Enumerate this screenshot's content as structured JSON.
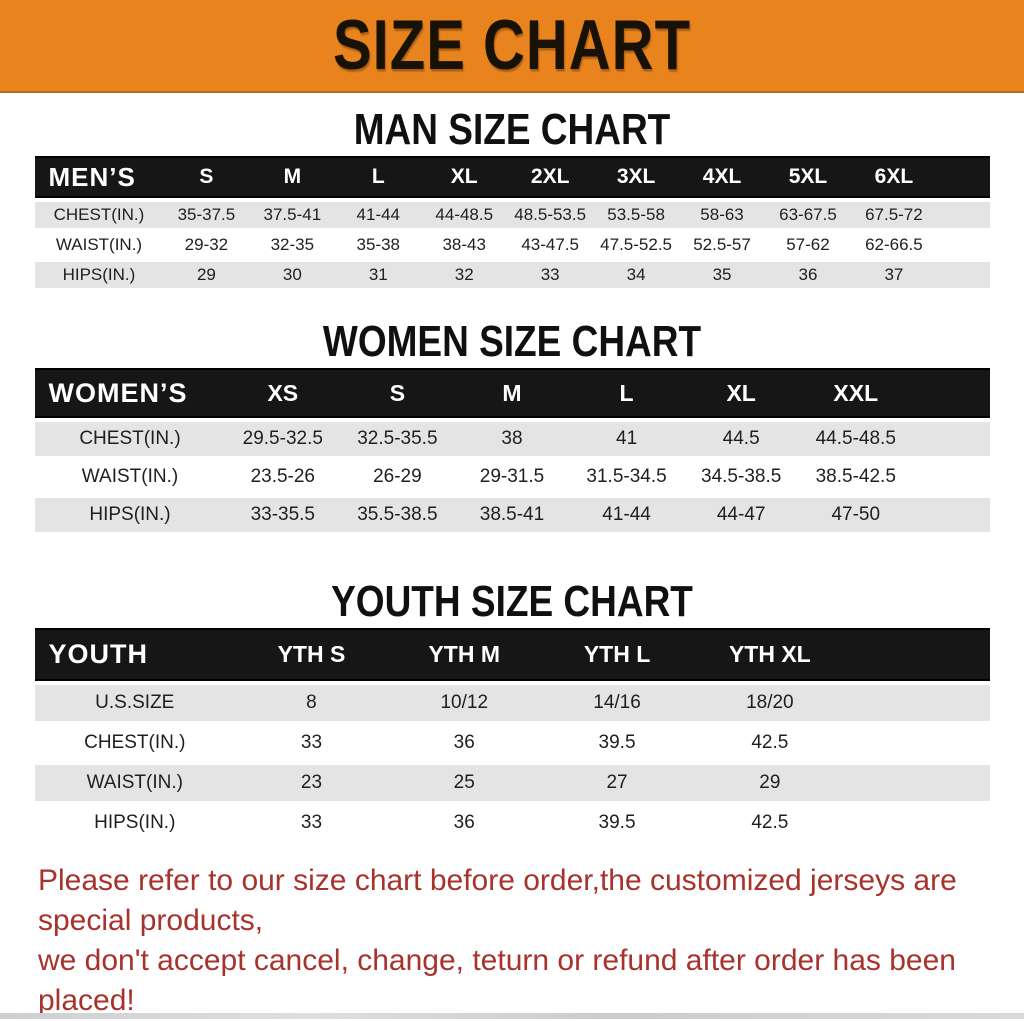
{
  "banner": {
    "title": "SIZE CHART"
  },
  "charts": [
    {
      "heading": "MAN SIZE CHART",
      "corner_label": "MEN’S",
      "size_columns": [
        "S",
        "M",
        "L",
        "XL",
        "2XL",
        "3XL",
        "4XL",
        "5XL",
        "6XL"
      ],
      "rows": [
        {
          "label": "CHEST(IN.)",
          "values": [
            "35-37.5",
            "37.5-41",
            "41-44",
            "44-48.5",
            "48.5-53.5",
            "53.5-58",
            "58-63",
            "63-67.5",
            "67.5-72"
          ]
        },
        {
          "label": "WAIST(IN.)",
          "values": [
            "29-32",
            "32-35",
            "35-38",
            "38-43",
            "43-47.5",
            "47.5-52.5",
            "52.5-57",
            "57-62",
            "62-66.5"
          ]
        },
        {
          "label": "HIPS(IN.)",
          "values": [
            "29",
            "30",
            "31",
            "32",
            "33",
            "34",
            "35",
            "36",
            "37"
          ]
        }
      ]
    },
    {
      "heading": "WOMEN SIZE CHART",
      "corner_label": "WOMEN’S",
      "size_columns": [
        "XS",
        "S",
        "M",
        "L",
        "XL",
        "XXL"
      ],
      "rows": [
        {
          "label": "CHEST(IN.)",
          "values": [
            "29.5-32.5",
            "32.5-35.5",
            "38",
            "41",
            "44.5",
            "44.5-48.5"
          ]
        },
        {
          "label": "WAIST(IN.)",
          "values": [
            "23.5-26",
            "26-29",
            "29-31.5",
            "31.5-34.5",
            "34.5-38.5",
            "38.5-42.5"
          ]
        },
        {
          "label": "HIPS(IN.)",
          "values": [
            "33-35.5",
            "35.5-38.5",
            "38.5-41",
            "41-44",
            "44-47",
            "47-50"
          ]
        }
      ]
    },
    {
      "heading": "YOUTH SIZE CHART",
      "corner_label": "YOUTH",
      "size_columns": [
        "YTH S",
        "YTH M",
        "YTH L",
        "YTH XL"
      ],
      "rows": [
        {
          "label": "U.S.SIZE",
          "values": [
            "8",
            "10/12",
            "14/16",
            "18/20"
          ]
        },
        {
          "label": "CHEST(IN.)",
          "values": [
            "33",
            "36",
            "39.5",
            "42.5"
          ]
        },
        {
          "label": "WAIST(IN.)",
          "values": [
            "23",
            "25",
            "27",
            "29"
          ]
        },
        {
          "label": "HIPS(IN.)",
          "values": [
            "33",
            "36",
            "39.5",
            "42.5"
          ]
        }
      ]
    }
  ],
  "footer": {
    "line1": "Please refer to our size chart before order,the customized jerseys are special products,",
    "line2": "we don't accept cancel, change, teturn or refund after order has been placed!"
  },
  "colors": {
    "banner_bg": "#E8831D",
    "table_header_bg": "#161616",
    "row_alt_bg": "#E4E4E4",
    "footer_text": "#A8322C"
  }
}
